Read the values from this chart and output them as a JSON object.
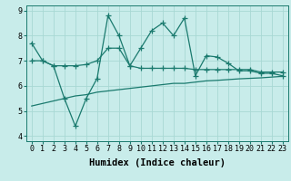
{
  "xlabel": "Humidex (Indice chaleur)",
  "bg_color": "#c8ecea",
  "line_color": "#1a7a6e",
  "grid_color": "#a8d8d4",
  "x": [
    0,
    1,
    2,
    3,
    4,
    5,
    6,
    7,
    8,
    9,
    10,
    11,
    12,
    13,
    14,
    15,
    16,
    17,
    18,
    19,
    20,
    21,
    22,
    23
  ],
  "line1": [
    7.7,
    7.0,
    6.8,
    5.5,
    4.4,
    5.5,
    6.3,
    8.8,
    8.0,
    6.8,
    7.5,
    8.2,
    8.5,
    8.0,
    8.7,
    6.4,
    7.2,
    7.15,
    6.9,
    6.6,
    6.6,
    6.5,
    6.5,
    6.4
  ],
  "line2": [
    7.0,
    7.0,
    6.8,
    6.8,
    6.8,
    6.85,
    7.0,
    7.5,
    7.5,
    6.8,
    6.7,
    6.7,
    6.7,
    6.7,
    6.7,
    6.65,
    6.65,
    6.65,
    6.65,
    6.65,
    6.65,
    6.55,
    6.55,
    6.55
  ],
  "line3": [
    5.2,
    5.3,
    5.4,
    5.5,
    5.6,
    5.65,
    5.75,
    5.8,
    5.85,
    5.9,
    5.95,
    6.0,
    6.05,
    6.1,
    6.1,
    6.15,
    6.2,
    6.22,
    6.25,
    6.28,
    6.3,
    6.32,
    6.35,
    6.38
  ],
  "ylim": [
    3.8,
    9.2
  ],
  "yticks": [
    4,
    5,
    6,
    7,
    8,
    9
  ],
  "xticks": [
    0,
    1,
    2,
    3,
    4,
    5,
    6,
    7,
    8,
    9,
    10,
    11,
    12,
    13,
    14,
    15,
    16,
    17,
    18,
    19,
    20,
    21,
    22,
    23
  ],
  "marker": "+",
  "markersize": 4,
  "linewidth": 0.9,
  "xlabel_fontsize": 7.5,
  "tick_fontsize": 6.0
}
